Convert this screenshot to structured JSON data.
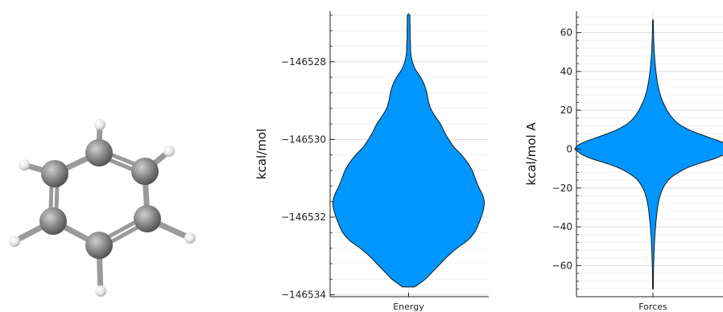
{
  "molecule": {
    "atoms": [
      {
        "element": "C"
      },
      {
        "element": "C"
      },
      {
        "element": "C"
      },
      {
        "element": "C"
      },
      {
        "element": "C"
      },
      {
        "element": "C"
      },
      {
        "element": "H"
      },
      {
        "element": "H"
      },
      {
        "element": "H"
      },
      {
        "element": "H"
      },
      {
        "element": "H"
      },
      {
        "element": "H"
      }
    ],
    "colors": {
      "carbon": "#8f8f8f",
      "hydrogen": "#f2f2f2",
      "bond": "#9a9a9a"
    }
  },
  "chart_data": [
    {
      "type": "violin",
      "categories": [
        "Energy"
      ],
      "ylabel": "kcal/mol",
      "ylim": [
        -146534.05,
        -146526.7
      ],
      "yticks": [
        -146534,
        -146532,
        -146530,
        -146528
      ],
      "ytick_labels": [
        "−146534",
        "−146532",
        "−146530",
        "−146528"
      ],
      "minor_step": 0.4,
      "grid": true,
      "fill_color": "#0096ff",
      "outline_color": "#1a1a1a",
      "profile": [
        [
          -146533.8,
          0.08
        ],
        [
          -146533.6,
          0.22
        ],
        [
          -146533.4,
          0.32
        ],
        [
          -146533.2,
          0.42
        ],
        [
          -146533.0,
          0.52
        ],
        [
          -146532.8,
          0.64
        ],
        [
          -146532.6,
          0.78
        ],
        [
          -146532.4,
          0.87
        ],
        [
          -146532.2,
          0.92
        ],
        [
          -146532.0,
          0.96
        ],
        [
          -146531.8,
          0.99
        ],
        [
          -146531.6,
          1.0
        ],
        [
          -146531.4,
          0.97
        ],
        [
          -146531.2,
          0.92
        ],
        [
          -146531.0,
          0.88
        ],
        [
          -146530.8,
          0.84
        ],
        [
          -146530.6,
          0.78
        ],
        [
          -146530.4,
          0.7
        ],
        [
          -146530.2,
          0.6
        ],
        [
          -146530.0,
          0.53
        ],
        [
          -146529.8,
          0.47
        ],
        [
          -146529.6,
          0.42
        ],
        [
          -146529.4,
          0.35
        ],
        [
          -146529.2,
          0.29
        ],
        [
          -146529.0,
          0.26
        ],
        [
          -146528.8,
          0.24
        ],
        [
          -146528.6,
          0.21
        ],
        [
          -146528.4,
          0.16
        ],
        [
          -146528.2,
          0.09
        ],
        [
          -146528.0,
          0.05
        ],
        [
          -146527.8,
          0.03
        ],
        [
          -146527.6,
          0.025
        ],
        [
          -146527.4,
          0.02
        ],
        [
          -146527.2,
          0.02
        ],
        [
          -146527.0,
          0.018
        ],
        [
          -146526.8,
          0.015
        ]
      ]
    },
    {
      "type": "violin",
      "categories": [
        "Forces"
      ],
      "ylabel": "kcal/mol A",
      "ylim": [
        -76,
        71
      ],
      "yticks": [
        -60,
        -40,
        -20,
        0,
        20,
        40,
        60
      ],
      "ytick_labels": [
        "−60",
        "−40",
        "−20",
        "0",
        "20",
        "40",
        "60"
      ],
      "minor_step": 4,
      "grid": true,
      "fill_color": "#0096ff",
      "outline_color": "#1a1a1a",
      "profile": [
        [
          -72,
          0.004
        ],
        [
          -65,
          0.006
        ],
        [
          -60,
          0.008
        ],
        [
          -55,
          0.012
        ],
        [
          -50,
          0.018
        ],
        [
          -45,
          0.024
        ],
        [
          -40,
          0.033
        ],
        [
          -35,
          0.045
        ],
        [
          -30,
          0.06
        ],
        [
          -25,
          0.085
        ],
        [
          -20,
          0.13
        ],
        [
          -15,
          0.22
        ],
        [
          -10,
          0.42
        ],
        [
          -7,
          0.62
        ],
        [
          -5,
          0.78
        ],
        [
          -3,
          0.9
        ],
        [
          -1,
          0.97
        ],
        [
          0,
          1.0
        ],
        [
          2,
          0.96
        ],
        [
          4,
          0.86
        ],
        [
          6,
          0.72
        ],
        [
          8,
          0.58
        ],
        [
          10,
          0.46
        ],
        [
          13,
          0.33
        ],
        [
          16,
          0.25
        ],
        [
          20,
          0.18
        ],
        [
          25,
          0.12
        ],
        [
          30,
          0.08
        ],
        [
          35,
          0.055
        ],
        [
          40,
          0.038
        ],
        [
          45,
          0.026
        ],
        [
          50,
          0.017
        ],
        [
          55,
          0.011
        ],
        [
          60,
          0.007
        ],
        [
          66,
          0.004
        ]
      ]
    }
  ]
}
